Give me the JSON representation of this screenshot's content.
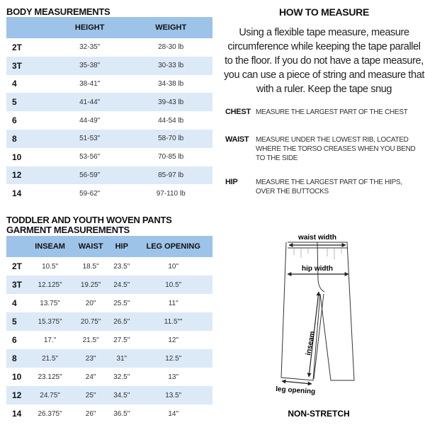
{
  "body": {
    "title": "BODY MEASUREMENTS",
    "columns": [
      "",
      "HEIGHT",
      "WEIGHT"
    ],
    "rows": [
      [
        "2T",
        "32-35\"",
        "28-30 lb"
      ],
      [
        "3T",
        "35-38\"",
        "30-33 lb"
      ],
      [
        "4",
        "38-41\"",
        "34-38 lb"
      ],
      [
        "5",
        "41-44\"",
        "39-43 lb"
      ],
      [
        "6",
        "44-49\"",
        "44-54 lb"
      ],
      [
        "8",
        "51-53\"",
        "58-70 lb"
      ],
      [
        "10",
        "53-56\"",
        "70-85 lb"
      ],
      [
        "12",
        "56-59\"",
        "85-97 lb"
      ],
      [
        "14",
        "59-62\"",
        "97-110 lb"
      ]
    ]
  },
  "garment": {
    "title_line1": "TODDLER AND YOUTH WOVEN PANTS",
    "title_line2": "GARMENT MEASUREMENTS",
    "columns": [
      "",
      "INSEAM",
      "WAIST",
      "HIP",
      "LEG OPENING"
    ],
    "rows": [
      [
        "2T",
        "10.5\"",
        "18.5\"",
        "23.5\"",
        "10\""
      ],
      [
        "3T",
        "12.125\"",
        "19.25\"",
        "24.5\"",
        "10.5\""
      ],
      [
        "4",
        "13.75\"",
        "20\"",
        "25.5\"",
        "11\""
      ],
      [
        "5",
        "15.375\"",
        "20.75\"",
        "26.5\"",
        "11.5\"\""
      ],
      [
        "6",
        "17.\"",
        "21.5\"",
        "27.5\"",
        "12\""
      ],
      [
        "8",
        "21.5\"",
        "23\"",
        "31\"",
        "12.5\""
      ],
      [
        "10",
        "23.125\"",
        "24\"",
        "32.5\"",
        "13\""
      ],
      [
        "12",
        "24.75\"",
        "25\"",
        "34.5\"",
        "13.5\""
      ],
      [
        "14",
        "26.375\"",
        "26\"",
        "36.5\"",
        "14\""
      ]
    ]
  },
  "how_to": {
    "title": "HOW TO MEASURE",
    "intro": "Using a flexible tape measure, measure circumference while keeping the tape parallel to the floor.  If you do not have a tape measure, you can use a piece of string and measure that with a ruler. Keep the tape snug",
    "items": [
      {
        "label": "CHEST",
        "text": "MEASURE THE LARGEST PART OF THE CHEST"
      },
      {
        "label": "WAIST",
        "text": "MEASURE UNDER THE LOWEST RIB, LOCATED WHERE THE TORSO CREASES WHEN YOU BEND TO THE SIDE"
      },
      {
        "label": "HIP",
        "text": "MEASURE THE LARGEST PART OF THE HIPS, OVER THE BUTTOCKS"
      }
    ]
  },
  "diagram": {
    "waist_label": "waist width",
    "hip_label": "hip width",
    "inseam_label": "inseam",
    "leg_label": "leg opening",
    "caption": "NON-STRETCH"
  },
  "colors": {
    "header": "#9dc3e8",
    "stripe": "#dce9f7"
  }
}
